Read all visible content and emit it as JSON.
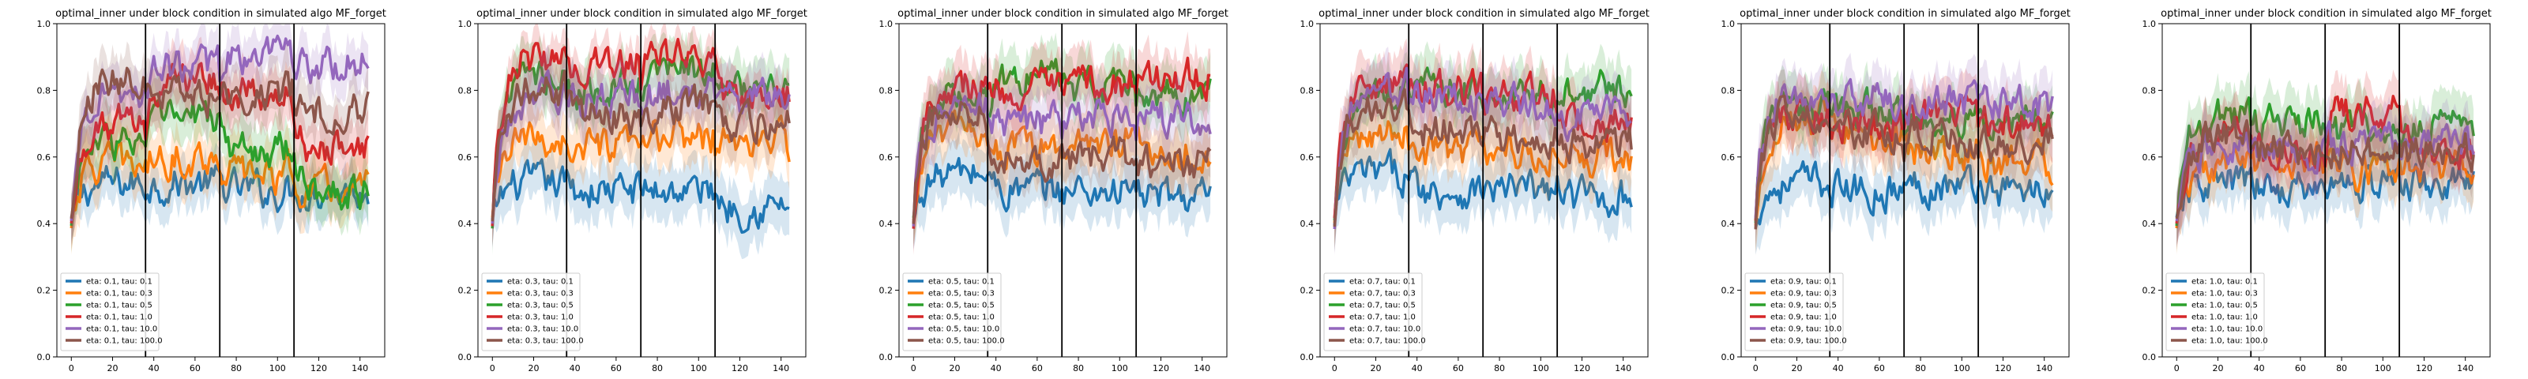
{
  "figure": {
    "style_colors": {
      "series": [
        "#1f77b4",
        "#ff7f0e",
        "#2ca02c",
        "#d62728",
        "#9467bd",
        "#8c564b"
      ],
      "block_line": "#000000",
      "axes": "#000000",
      "background": "#ffffff"
    }
  },
  "chart_data": [
    {
      "type": "line",
      "title": "optimal_inner under block condition in simulated algo MF_forget",
      "xlabel": "",
      "ylabel": "",
      "xlim": [
        -7,
        152
      ],
      "ylim": [
        0.0,
        1.0
      ],
      "xticks": [
        "0",
        "20",
        "40",
        "60",
        "80",
        "100",
        "120",
        "140"
      ],
      "yticks": [
        "0.0",
        "0.2",
        "0.4",
        "0.6",
        "0.8",
        "1.0"
      ],
      "block_boundaries": [
        36,
        72,
        108
      ],
      "legend_position": "lower-left",
      "shaded_band": "confidence",
      "series": [
        {
          "name": "eta: 0.1, tau: 0.1",
          "color": "#1f77b4",
          "level": [
            0.52,
            0.52,
            0.5,
            0.5
          ],
          "band": 0.07
        },
        {
          "name": "eta: 0.1, tau: 0.3",
          "color": "#ff7f0e",
          "level": [
            0.58,
            0.6,
            0.55,
            0.5
          ],
          "band": 0.08
        },
        {
          "name": "eta: 0.1, tau: 0.5",
          "color": "#2ca02c",
          "level": [
            0.65,
            0.72,
            0.62,
            0.5
          ],
          "band": 0.08
        },
        {
          "name": "eta: 0.1, tau: 1.0",
          "color": "#d62728",
          "level": [
            0.7,
            0.84,
            0.78,
            0.62
          ],
          "band": 0.08
        },
        {
          "name": "eta: 0.1, tau: 10.0",
          "color": "#9467bd",
          "level": [
            0.8,
            0.87,
            0.9,
            0.88
          ],
          "band": 0.07
        },
        {
          "name": "eta: 0.1, tau: 100.0",
          "color": "#8c564b",
          "level": [
            0.83,
            0.78,
            0.8,
            0.74
          ],
          "band": 0.08
        }
      ]
    },
    {
      "type": "line",
      "title": "optimal_inner under block condition in simulated algo MF_forget",
      "xlabel": "",
      "ylabel": "",
      "xlim": [
        -7,
        152
      ],
      "ylim": [
        0.0,
        1.0
      ],
      "xticks": [
        "0",
        "20",
        "40",
        "60",
        "80",
        "100",
        "120",
        "140"
      ],
      "yticks": [
        "0.0",
        "0.2",
        "0.4",
        "0.6",
        "0.8",
        "1.0"
      ],
      "block_boundaries": [
        36,
        72,
        108
      ],
      "legend_position": "lower-left",
      "shaded_band": "confidence",
      "series": [
        {
          "name": "eta: 0.3, tau: 0.1",
          "color": "#1f77b4",
          "level": [
            0.52,
            0.5,
            0.5,
            0.45
          ],
          "band": 0.08
        },
        {
          "name": "eta: 0.3, tau: 0.3",
          "color": "#ff7f0e",
          "level": [
            0.65,
            0.62,
            0.66,
            0.64
          ],
          "band": 0.08
        },
        {
          "name": "eta: 0.3, tau: 0.5",
          "color": "#2ca02c",
          "level": [
            0.85,
            0.8,
            0.86,
            0.8
          ],
          "band": 0.08
        },
        {
          "name": "eta: 0.3, tau: 1.0",
          "color": "#d62728",
          "level": [
            0.9,
            0.88,
            0.9,
            0.78
          ],
          "band": 0.06
        },
        {
          "name": "eta: 0.3, tau: 10.0",
          "color": "#9467bd",
          "level": [
            0.78,
            0.78,
            0.8,
            0.78
          ],
          "band": 0.08
        },
        {
          "name": "eta: 0.3, tau: 100.0",
          "color": "#8c564b",
          "level": [
            0.8,
            0.72,
            0.75,
            0.7
          ],
          "band": 0.08
        }
      ]
    },
    {
      "type": "line",
      "title": "optimal_inner under block condition in simulated algo MF_forget",
      "xlabel": "",
      "ylabel": "",
      "xlim": [
        -7,
        152
      ],
      "ylim": [
        0.0,
        1.0
      ],
      "xticks": [
        "0",
        "20",
        "40",
        "60",
        "80",
        "100",
        "120",
        "140"
      ],
      "yticks": [
        "0.0",
        "0.2",
        "0.4",
        "0.6",
        "0.8",
        "1.0"
      ],
      "block_boundaries": [
        36,
        72,
        108
      ],
      "legend_position": "lower-left",
      "shaded_band": "confidence",
      "series": [
        {
          "name": "eta: 0.5, tau: 0.1",
          "color": "#1f77b4",
          "level": [
            0.55,
            0.5,
            0.5,
            0.48
          ],
          "band": 0.08
        },
        {
          "name": "eta: 0.5, tau: 0.3",
          "color": "#ff7f0e",
          "level": [
            0.68,
            0.62,
            0.65,
            0.62
          ],
          "band": 0.08
        },
        {
          "name": "eta: 0.5, tau: 0.5",
          "color": "#2ca02c",
          "level": [
            0.8,
            0.84,
            0.8,
            0.78
          ],
          "band": 0.08
        },
        {
          "name": "eta: 0.5, tau: 1.0",
          "color": "#d62728",
          "level": [
            0.82,
            0.8,
            0.82,
            0.84
          ],
          "band": 0.08
        },
        {
          "name": "eta: 0.5, tau: 10.0",
          "color": "#9467bd",
          "level": [
            0.75,
            0.7,
            0.72,
            0.72
          ],
          "band": 0.08
        },
        {
          "name": "eta: 0.5, tau: 100.0",
          "color": "#8c564b",
          "level": [
            0.75,
            0.6,
            0.6,
            0.58
          ],
          "band": 0.08
        }
      ]
    },
    {
      "type": "line",
      "title": "optimal_inner under block condition in simulated algo MF_forget",
      "xlabel": "",
      "ylabel": "",
      "xlim": [
        -7,
        152
      ],
      "ylim": [
        0.0,
        1.0
      ],
      "xticks": [
        "0",
        "20",
        "40",
        "60",
        "80",
        "100",
        "120",
        "140"
      ],
      "yticks": [
        "0.0",
        "0.2",
        "0.4",
        "0.6",
        "0.8",
        "1.0"
      ],
      "block_boundaries": [
        36,
        72,
        108
      ],
      "legend_position": "lower-left",
      "shaded_band": "confidence",
      "series": [
        {
          "name": "eta: 0.7, tau: 0.1",
          "color": "#1f77b4",
          "level": [
            0.55,
            0.5,
            0.5,
            0.48
          ],
          "band": 0.08
        },
        {
          "name": "eta: 0.7, tau: 0.3",
          "color": "#ff7f0e",
          "level": [
            0.68,
            0.62,
            0.62,
            0.6
          ],
          "band": 0.08
        },
        {
          "name": "eta: 0.7, tau: 0.5",
          "color": "#2ca02c",
          "level": [
            0.8,
            0.8,
            0.78,
            0.8
          ],
          "band": 0.08
        },
        {
          "name": "eta: 0.7, tau: 1.0",
          "color": "#d62728",
          "level": [
            0.82,
            0.8,
            0.78,
            0.7
          ],
          "band": 0.08
        },
        {
          "name": "eta: 0.7, tau: 10.0",
          "color": "#9467bd",
          "level": [
            0.8,
            0.78,
            0.76,
            0.72
          ],
          "band": 0.08
        },
        {
          "name": "eta: 0.7, tau: 100.0",
          "color": "#8c564b",
          "level": [
            0.75,
            0.68,
            0.66,
            0.64
          ],
          "band": 0.08
        }
      ]
    },
    {
      "type": "line",
      "title": "optimal_inner under block condition in simulated algo MF_forget",
      "xlabel": "",
      "ylabel": "",
      "xlim": [
        -7,
        152
      ],
      "ylim": [
        0.0,
        1.0
      ],
      "xticks": [
        "0",
        "20",
        "40",
        "60",
        "80",
        "100",
        "120",
        "140"
      ],
      "yticks": [
        "0.0",
        "0.2",
        "0.4",
        "0.6",
        "0.8",
        "1.0"
      ],
      "block_boundaries": [
        36,
        72,
        108
      ],
      "legend_position": "lower-left",
      "shaded_band": "confidence",
      "series": [
        {
          "name": "eta: 0.9, tau: 0.1",
          "color": "#1f77b4",
          "level": [
            0.52,
            0.5,
            0.52,
            0.5
          ],
          "band": 0.08
        },
        {
          "name": "eta: 0.9, tau: 0.3",
          "color": "#ff7f0e",
          "level": [
            0.72,
            0.66,
            0.62,
            0.58
          ],
          "band": 0.08
        },
        {
          "name": "eta: 0.9, tau: 0.5",
          "color": "#2ca02c",
          "level": [
            0.76,
            0.74,
            0.72,
            0.72
          ],
          "band": 0.08
        },
        {
          "name": "eta: 0.9, tau: 1.0",
          "color": "#d62728",
          "level": [
            0.74,
            0.7,
            0.72,
            0.7
          ],
          "band": 0.08
        },
        {
          "name": "eta: 0.9, tau: 10.0",
          "color": "#9467bd",
          "level": [
            0.8,
            0.78,
            0.76,
            0.76
          ],
          "band": 0.08
        },
        {
          "name": "eta: 0.9, tau: 100.0",
          "color": "#8c564b",
          "level": [
            0.74,
            0.68,
            0.66,
            0.64
          ],
          "band": 0.08
        }
      ]
    },
    {
      "type": "line",
      "title": "optimal_inner under block condition in simulated algo MF_forget",
      "xlabel": "",
      "ylabel": "",
      "xlim": [
        -7,
        152
      ],
      "ylim": [
        0.0,
        1.0
      ],
      "xticks": [
        "0",
        "20",
        "40",
        "60",
        "80",
        "100",
        "120",
        "140"
      ],
      "yticks": [
        "0.0",
        "0.2",
        "0.4",
        "0.6",
        "0.8",
        "1.0"
      ],
      "block_boundaries": [
        36,
        72,
        108
      ],
      "legend_position": "lower-left",
      "shaded_band": "confidence",
      "series": [
        {
          "name": "eta: 1.0, tau: 0.1",
          "color": "#1f77b4",
          "level": [
            0.52,
            0.5,
            0.52,
            0.52
          ],
          "band": 0.08
        },
        {
          "name": "eta: 1.0, tau: 0.3",
          "color": "#ff7f0e",
          "level": [
            0.58,
            0.58,
            0.56,
            0.58
          ],
          "band": 0.08
        },
        {
          "name": "eta: 1.0, tau: 0.5",
          "color": "#2ca02c",
          "level": [
            0.72,
            0.7,
            0.68,
            0.7
          ],
          "band": 0.08
        },
        {
          "name": "eta: 1.0, tau: 1.0",
          "color": "#d62728",
          "level": [
            0.66,
            0.62,
            0.74,
            0.62
          ],
          "band": 0.08
        },
        {
          "name": "eta: 1.0, tau: 10.0",
          "color": "#9467bd",
          "level": [
            0.62,
            0.62,
            0.64,
            0.64
          ],
          "band": 0.08
        },
        {
          "name": "eta: 1.0, tau: 100.0",
          "color": "#8c564b",
          "level": [
            0.66,
            0.62,
            0.62,
            0.62
          ],
          "band": 0.08
        }
      ]
    }
  ]
}
